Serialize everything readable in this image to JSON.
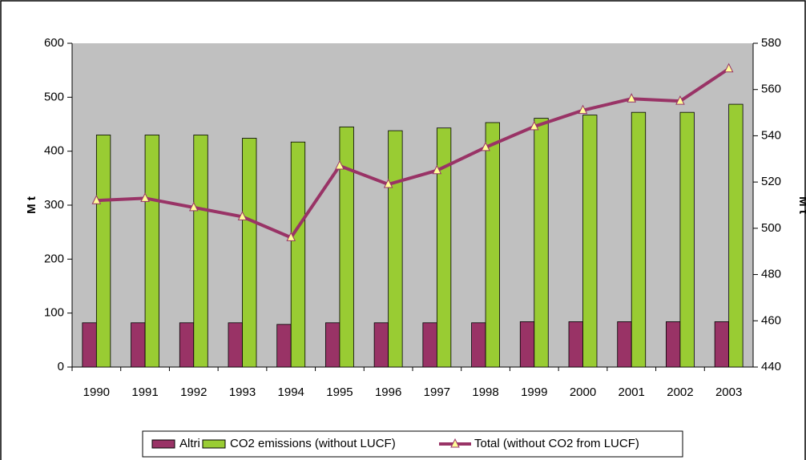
{
  "chart_data": {
    "type": "bar",
    "categories": [
      "1990",
      "1991",
      "1992",
      "1993",
      "1994",
      "1995",
      "1996",
      "1997",
      "1998",
      "1999",
      "2000",
      "2001",
      "2002",
      "2003"
    ],
    "series": [
      {
        "name": "Altri",
        "color": "#993366",
        "values": [
          82,
          82,
          82,
          82,
          79,
          82,
          82,
          82,
          82,
          84,
          84,
          84,
          84,
          84
        ]
      },
      {
        "name": "CO2 emissions (without LUCF)",
        "color": "#99cc33",
        "values": [
          430,
          430,
          430,
          424,
          417,
          445,
          438,
          443,
          453,
          461,
          467,
          472,
          472,
          487
        ]
      },
      {
        "name": "Total (without CO2 from LUCF)",
        "type": "line",
        "axis": "y2",
        "color": "#993366",
        "marker_color": "#ffff99",
        "values": [
          512,
          513,
          509,
          505,
          496,
          527,
          519,
          525,
          535,
          544,
          551,
          556,
          555,
          569
        ]
      }
    ],
    "ylabel": "M t",
    "y2label": "M t",
    "ylim": [
      0,
      600
    ],
    "yticks": [
      0,
      100,
      200,
      300,
      400,
      500,
      600
    ],
    "y2lim": [
      440,
      580
    ],
    "y2ticks": [
      440,
      460,
      480,
      500,
      520,
      540,
      560,
      580
    ],
    "legend": "bottom"
  }
}
